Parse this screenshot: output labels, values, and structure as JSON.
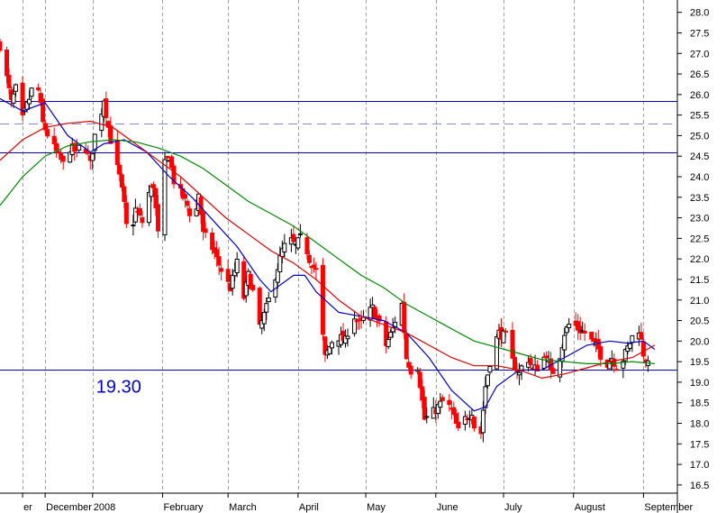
{
  "chart_data": {
    "type": "candlestick",
    "title": "",
    "xlabel": "",
    "ylabel": "",
    "ylim": [
      16.3,
      28.3
    ],
    "y_ticks": [
      "16.5",
      "17.0",
      "17.5",
      "18.0",
      "18.5",
      "19.0",
      "19.5",
      "20.0",
      "20.5",
      "21.0",
      "21.5",
      "22.0",
      "22.5",
      "23.0",
      "23.5",
      "24.0",
      "24.5",
      "25.0",
      "25.5",
      "26.0",
      "26.5",
      "27.0",
      "27.5",
      "28.0"
    ],
    "x_months": [
      {
        "label": "er",
        "day": 0
      },
      {
        "label": "December",
        "day": 10
      },
      {
        "label": "2008",
        "day": 31
      },
      {
        "label": "February",
        "day": 62
      },
      {
        "label": "March",
        "day": 91
      },
      {
        "label": "April",
        "day": 122
      },
      {
        "label": "May",
        "day": 152
      },
      {
        "label": "June",
        "day": 183
      },
      {
        "label": "July",
        "day": 213
      },
      {
        "label": "August",
        "day": 244
      },
      {
        "label": "September",
        "day": 275
      }
    ],
    "x_days_range": [
      -10,
      290
    ],
    "grid": "vertical-dashed-monthly",
    "axis_side": "right",
    "horizontal_lines": [
      {
        "value": 25.85,
        "style": "solid",
        "color": "#0000cc"
      },
      {
        "value": 25.3,
        "style": "dashed",
        "color": "#8888cc"
      },
      {
        "value": 24.6,
        "style": "solid",
        "color": "#0000cc"
      },
      {
        "value": 19.3,
        "style": "solid",
        "color": "#0000cc"
      }
    ],
    "annotation": {
      "text": "19.30",
      "day": 35,
      "value": 19.3,
      "color": "#0000cc"
    },
    "candle_colors": {
      "up": "#000000",
      "down": "#ff0000"
    },
    "close_path": [
      [
        -10,
        27.2
      ],
      [
        -7,
        26.4
      ],
      [
        -5,
        25.8
      ],
      [
        -2,
        26.3
      ],
      [
        0,
        25.4
      ],
      [
        3,
        25.9
      ],
      [
        6,
        26.5
      ],
      [
        9,
        25.3
      ],
      [
        12,
        24.9
      ],
      [
        15,
        24.6
      ],
      [
        18,
        24.3
      ],
      [
        21,
        24.7
      ],
      [
        24,
        24.6
      ],
      [
        27,
        24.9
      ],
      [
        30,
        24.3
      ],
      [
        32,
        25.0
      ],
      [
        34,
        25.3
      ],
      [
        36,
        25.9
      ],
      [
        38,
        25.2
      ],
      [
        40,
        24.6
      ],
      [
        43,
        24.0
      ],
      [
        45,
        23.3
      ],
      [
        47,
        22.3
      ],
      [
        50,
        23.2
      ],
      [
        53,
        22.9
      ],
      [
        56,
        23.6
      ],
      [
        58,
        23.8
      ],
      [
        60,
        22.6
      ],
      [
        62,
        24.2
      ],
      [
        65,
        24.5
      ],
      [
        67,
        23.9
      ],
      [
        70,
        23.6
      ],
      [
        73,
        23.3
      ],
      [
        76,
        22.8
      ],
      [
        78,
        23.6
      ],
      [
        80,
        22.6
      ],
      [
        83,
        22.4
      ],
      [
        86,
        22.0
      ],
      [
        89,
        21.6
      ],
      [
        92,
        21.3
      ],
      [
        95,
        21.9
      ],
      [
        97,
        20.8
      ],
      [
        100,
        21.6
      ],
      [
        103,
        21.0
      ],
      [
        105,
        20.3
      ],
      [
        108,
        20.8
      ],
      [
        110,
        21.2
      ],
      [
        112,
        21.6
      ],
      [
        115,
        22.2
      ],
      [
        118,
        22.5
      ],
      [
        121,
        22.3
      ],
      [
        124,
        22.6
      ],
      [
        127,
        22.0
      ],
      [
        130,
        21.7
      ],
      [
        132,
        20.6
      ],
      [
        134,
        19.6
      ],
      [
        137,
        20.0
      ],
      [
        140,
        20.1
      ],
      [
        143,
        20.0
      ],
      [
        146,
        20.7
      ],
      [
        149,
        20.4
      ],
      [
        152,
        20.6
      ],
      [
        155,
        20.8
      ],
      [
        158,
        20.4
      ],
      [
        161,
        19.9
      ],
      [
        164,
        20.3
      ],
      [
        166,
        20.7
      ],
      [
        168,
        20.9
      ],
      [
        170,
        19.6
      ],
      [
        172,
        19.3
      ],
      [
        175,
        19.4
      ],
      [
        178,
        18.1
      ],
      [
        181,
        18.2
      ],
      [
        184,
        18.4
      ],
      [
        187,
        18.6
      ],
      [
        190,
        18.3
      ],
      [
        193,
        17.8
      ],
      [
        196,
        18.1
      ],
      [
        199,
        18.3
      ],
      [
        202,
        17.2
      ],
      [
        205,
        18.9
      ],
      [
        208,
        19.8
      ],
      [
        211,
        20.2
      ],
      [
        214,
        20.1
      ],
      [
        217,
        19.5
      ],
      [
        220,
        19.2
      ],
      [
        223,
        19.7
      ],
      [
        226,
        19.3
      ],
      [
        229,
        19.4
      ],
      [
        232,
        19.7
      ],
      [
        234,
        19.2
      ],
      [
        237,
        19.4
      ],
      [
        240,
        20.2
      ],
      [
        243,
        20.5
      ],
      [
        246,
        20.3
      ],
      [
        249,
        20.2
      ],
      [
        252,
        20.0
      ],
      [
        255,
        19.8
      ],
      [
        258,
        19.4
      ],
      [
        261,
        19.6
      ],
      [
        264,
        19.3
      ],
      [
        267,
        19.7
      ],
      [
        270,
        20.1
      ],
      [
        273,
        20.3
      ],
      [
        275,
        19.7
      ],
      [
        277,
        19.4
      ],
      [
        279,
        19.5
      ]
    ],
    "series": [
      {
        "color": "#0000cc",
        "points": [
          [
            -10,
            25.9
          ],
          [
            0,
            25.6
          ],
          [
            10,
            25.8
          ],
          [
            20,
            25.0
          ],
          [
            30,
            24.6
          ],
          [
            36,
            24.8
          ],
          [
            45,
            24.9
          ],
          [
            55,
            24.6
          ],
          [
            65,
            24.0
          ],
          [
            75,
            23.5
          ],
          [
            85,
            22.9
          ],
          [
            95,
            22.3
          ],
          [
            105,
            21.5
          ],
          [
            110,
            21.2
          ],
          [
            120,
            21.6
          ],
          [
            125,
            21.6
          ],
          [
            130,
            21.2
          ],
          [
            140,
            20.7
          ],
          [
            150,
            20.6
          ],
          [
            160,
            20.5
          ],
          [
            170,
            20.2
          ],
          [
            180,
            19.6
          ],
          [
            190,
            18.8
          ],
          [
            200,
            18.3
          ],
          [
            205,
            18.4
          ],
          [
            210,
            18.9
          ],
          [
            220,
            19.3
          ],
          [
            230,
            19.3
          ],
          [
            240,
            19.6
          ],
          [
            250,
            19.9
          ],
          [
            260,
            20.0
          ],
          [
            268,
            19.95
          ],
          [
            275,
            20.0
          ],
          [
            280,
            19.8
          ]
        ]
      },
      {
        "color": "#dd0000",
        "points": [
          [
            -10,
            24.4
          ],
          [
            0,
            24.9
          ],
          [
            10,
            25.2
          ],
          [
            20,
            25.3
          ],
          [
            30,
            25.35
          ],
          [
            40,
            25.2
          ],
          [
            50,
            24.8
          ],
          [
            60,
            24.4
          ],
          [
            70,
            24.0
          ],
          [
            80,
            23.5
          ],
          [
            90,
            23.0
          ],
          [
            100,
            22.6
          ],
          [
            110,
            22.2
          ],
          [
            120,
            21.9
          ],
          [
            130,
            21.5
          ],
          [
            140,
            21.0
          ],
          [
            150,
            20.6
          ],
          [
            160,
            20.4
          ],
          [
            170,
            20.2
          ],
          [
            180,
            19.9
          ],
          [
            190,
            19.6
          ],
          [
            200,
            19.4
          ],
          [
            210,
            19.4
          ],
          [
            220,
            19.3
          ],
          [
            230,
            19.1
          ],
          [
            240,
            19.2
          ],
          [
            250,
            19.35
          ],
          [
            260,
            19.5
          ],
          [
            270,
            19.6
          ],
          [
            280,
            19.9
          ]
        ]
      },
      {
        "color": "#008800",
        "points": [
          [
            -10,
            23.3
          ],
          [
            0,
            24.0
          ],
          [
            10,
            24.5
          ],
          [
            20,
            24.75
          ],
          [
            30,
            24.85
          ],
          [
            40,
            24.9
          ],
          [
            50,
            24.85
          ],
          [
            60,
            24.7
          ],
          [
            70,
            24.5
          ],
          [
            80,
            24.2
          ],
          [
            90,
            23.8
          ],
          [
            100,
            23.4
          ],
          [
            110,
            23.1
          ],
          [
            120,
            22.8
          ],
          [
            130,
            22.4
          ],
          [
            140,
            22.0
          ],
          [
            150,
            21.6
          ],
          [
            160,
            21.3
          ],
          [
            170,
            20.9
          ],
          [
            180,
            20.6
          ],
          [
            190,
            20.3
          ],
          [
            200,
            20.0
          ],
          [
            210,
            19.85
          ],
          [
            220,
            19.7
          ],
          [
            230,
            19.55
          ],
          [
            240,
            19.5
          ],
          [
            250,
            19.45
          ],
          [
            260,
            19.45
          ],
          [
            270,
            19.5
          ],
          [
            280,
            19.45
          ]
        ]
      }
    ]
  }
}
